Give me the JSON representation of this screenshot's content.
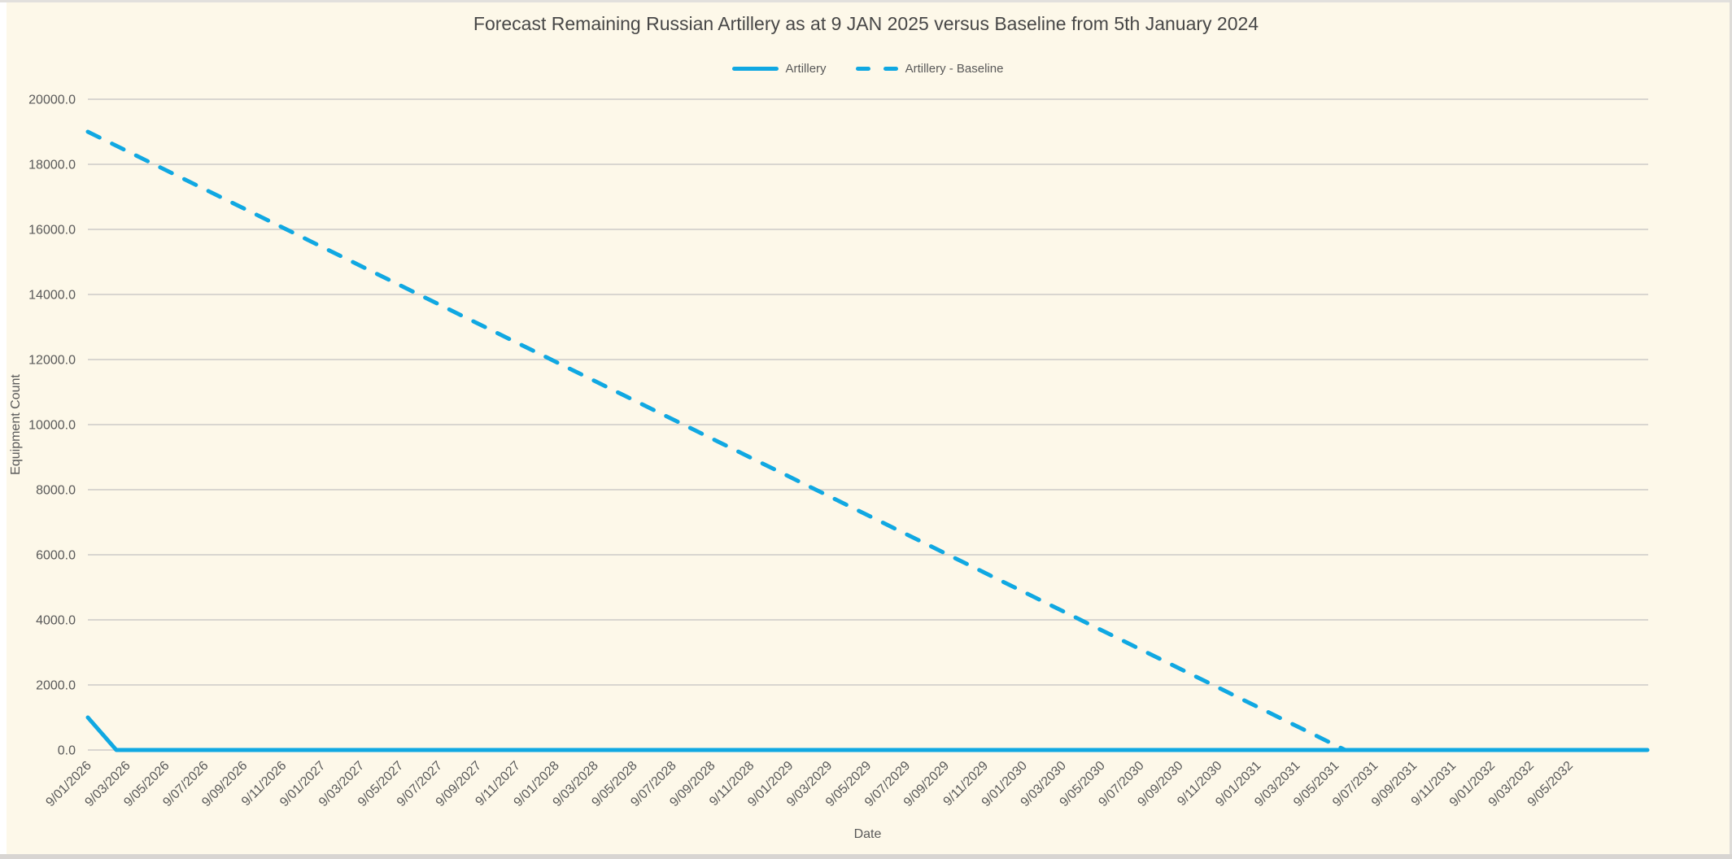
{
  "title": "Forecast Remaining Russian Artillery as at 9 JAN 2025 versus Baseline from 5th January 2024",
  "legend": {
    "position": "top",
    "items": [
      {
        "label": "Artillery",
        "style": "solid"
      },
      {
        "label": "Artillery - Baseline",
        "style": "dashed"
      }
    ]
  },
  "colors": {
    "background": "#fdf8e9",
    "accent": "#10a8e2",
    "gridline": "#d9d6d0",
    "axis_text": "#595959",
    "title_text": "#474747"
  },
  "chart_data": {
    "type": "line",
    "title": "Forecast Remaining Russian Artillery as at 9 JAN 2025 versus Baseline from 5th January 2024",
    "xlabel": "Date",
    "ylabel": "Equipment Count",
    "ylim": [
      0,
      20000
    ],
    "y_tick_step": 2000,
    "y_tick_labels": [
      "0.0",
      "2000.0",
      "4000.0",
      "6000.0",
      "8000.0",
      "10000.0",
      "12000.0",
      "14000.0",
      "16000.0",
      "18000.0",
      "20000.0"
    ],
    "x_tick_labels": [
      "9/01/2026",
      "9/03/2026",
      "9/05/2026",
      "9/07/2026",
      "9/09/2026",
      "9/11/2026",
      "9/01/2027",
      "9/03/2027",
      "9/05/2027",
      "9/07/2027",
      "9/09/2027",
      "9/11/2027",
      "9/01/2028",
      "9/03/2028",
      "9/05/2028",
      "9/07/2028",
      "9/09/2028",
      "9/11/2028",
      "9/01/2029",
      "9/03/2029",
      "9/05/2029",
      "9/07/2029",
      "9/09/2029",
      "9/11/2029",
      "9/01/2030",
      "9/03/2030",
      "9/05/2030",
      "9/07/2030",
      "9/09/2030",
      "9/11/2030",
      "9/01/2031",
      "9/03/2031",
      "9/05/2031",
      "9/07/2031",
      "9/09/2031",
      "9/11/2031",
      "9/01/2032",
      "9/03/2032",
      "9/05/2032"
    ],
    "x_axis_extent_in_ticks": 40,
    "grid": "horizontal",
    "legend_position": "top",
    "series": [
      {
        "name": "Artillery",
        "line_style": "solid",
        "summary": "starts at ~1000 on 9/01/2026, falls to 0 within about 6 weeks, then flat at 0 to end of axis",
        "points": [
          {
            "k": 0,
            "date": "9/01/2026",
            "value": 1000
          },
          {
            "k": 0.73,
            "date": "mid 9/02/2026",
            "value": 0
          },
          {
            "k": 40,
            "date": "9/09/2032",
            "value": 0
          }
        ]
      },
      {
        "name": "Artillery - Baseline",
        "line_style": "dashed",
        "summary": "linear decline from ~19000 on 9/01/2026 reaching 0 around 9/05/2031",
        "points": [
          {
            "k": 0,
            "date": "9/01/2026",
            "value": 19000
          },
          {
            "k": 32.25,
            "date": "9/05/2031",
            "value": 0
          }
        ]
      }
    ]
  }
}
